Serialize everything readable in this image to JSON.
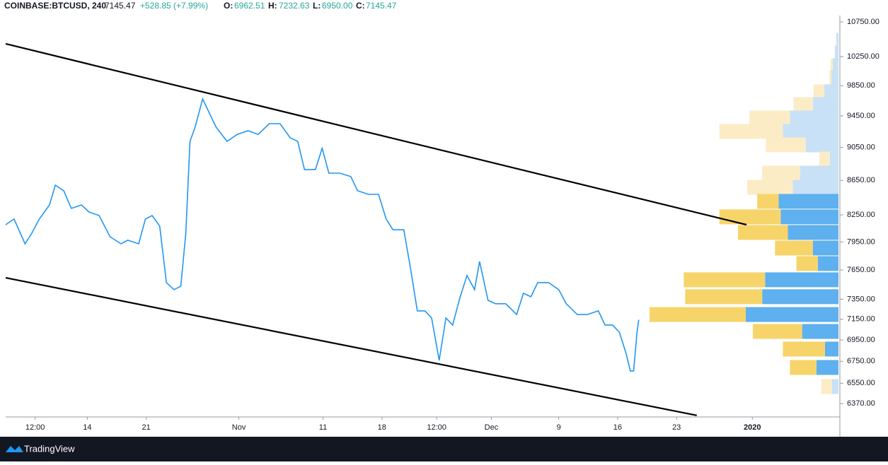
{
  "chart_data": {
    "type": "line",
    "header": {
      "symbol": "COINBASE:BTCUSD, 240",
      "last": "7145.47",
      "change": "+528.85 (+7.99%)",
      "o_label": "O:",
      "o": "6962.51",
      "h_label": "H:",
      "h": "7232.63",
      "l_label": "L:",
      "l": "6950.00",
      "c_label": "C:",
      "c": "7145.47"
    },
    "brand": "TradingView",
    "log_scale": true,
    "ylim": [
      6254,
      10844
    ],
    "yticks": [
      {
        "value": 10750,
        "label": "10750.00"
      },
      {
        "value": 10250,
        "label": "10250.00"
      },
      {
        "value": 9850,
        "label": "9850.00"
      },
      {
        "value": 9450,
        "label": "9450.00"
      },
      {
        "value": 9050,
        "label": "9050.00"
      },
      {
        "value": 8650,
        "label": "8650.00"
      },
      {
        "value": 8250,
        "label": "8250.00"
      },
      {
        "value": 7950,
        "label": "7950.00"
      },
      {
        "value": 7650,
        "label": "7650.00"
      },
      {
        "value": 7350,
        "label": "7350.00"
      },
      {
        "value": 7150,
        "label": "7150.00"
      },
      {
        "value": 6950,
        "label": "6950.00"
      },
      {
        "value": 6750,
        "label": "6750.00"
      },
      {
        "value": 6550,
        "label": "6550.00"
      },
      {
        "value": 6370,
        "label": "6370.00"
      }
    ],
    "xlim": [
      3.3,
      102.4
    ],
    "xticks": [
      {
        "value": 6.8,
        "label": "12:00"
      },
      {
        "value": 13,
        "label": "14"
      },
      {
        "value": 20,
        "label": "21"
      },
      {
        "value": 31,
        "label": "Nov"
      },
      {
        "value": 41,
        "label": "11"
      },
      {
        "value": 48,
        "label": "18"
      },
      {
        "value": 54.5,
        "label": "12:00"
      },
      {
        "value": 61,
        "label": "Dec"
      },
      {
        "value": 69,
        "label": "9"
      },
      {
        "value": 76,
        "label": "16"
      },
      {
        "value": 83,
        "label": "23"
      },
      {
        "value": 92,
        "label": "2020"
      }
    ],
    "x": [
      3.3,
      4.3,
      5.6,
      6.4,
      7.3,
      8.5,
      9.2,
      10.2,
      11.1,
      12.3,
      13.2,
      14.4,
      15.7,
      17.0,
      17.8,
      19.1,
      19.9,
      20.7,
      21.6,
      22.4,
      23.3,
      24.1,
      24.7,
      25.2,
      25.8,
      26.7,
      27.5,
      28.3,
      29.6,
      30.8,
      32.1,
      33.3,
      34.6,
      35.9,
      37.1,
      38.0,
      38.8,
      40.1,
      40.9,
      41.7,
      43.0,
      44.3,
      45.1,
      46.4,
      47.6,
      48.5,
      49.3,
      50.6,
      51.4,
      52.2,
      53.1,
      53.9,
      54.8,
      55.6,
      56.4,
      57.3,
      58.1,
      59.0,
      59.6,
      60.6,
      61.5,
      62.7,
      64.0,
      64.8,
      65.7,
      66.5,
      67.8,
      69.0,
      69.9,
      71.2,
      72.4,
      73.7,
      74.5,
      75.4,
      76.2,
      77.0,
      77.5,
      77.9,
      78.3,
      78.5
    ],
    "series": [
      {
        "color": "#2196f3",
        "values": [
          8140,
          8204,
          7930,
          8046,
          8204,
          8364,
          8594,
          8528,
          8324,
          8364,
          8283,
          8243,
          8007,
          7930,
          7969,
          7930,
          8204,
          8243,
          8125,
          7519,
          7447,
          7482,
          8046,
          9126,
          9305,
          9673,
          9487,
          9305,
          9126,
          9213,
          9260,
          9213,
          9350,
          9350,
          9170,
          9126,
          8780,
          8780,
          9040,
          8737,
          8737,
          8695,
          8528,
          8486,
          8486,
          8204,
          8084,
          8084,
          7665,
          7233,
          7233,
          7163,
          6759,
          7163,
          7094,
          7375,
          7592,
          7447,
          7740,
          7339,
          7304,
          7304,
          7197,
          7410,
          7375,
          7519,
          7519,
          7447,
          7304,
          7197,
          7197,
          7233,
          7094,
          7094,
          7025,
          6824,
          6661,
          6661,
          7025,
          7145
        ]
      }
    ],
    "trendlines": [
      {
        "color": "#000000",
        "x": [
          3.3,
          91.3
        ],
        "y": [
          10432,
          8140
        ]
      },
      {
        "color": "#000000",
        "x": [
          3.3,
          85.4
        ],
        "y": [
          7569,
          6267
        ]
      }
    ],
    "volume_profile": {
      "buy_color": "#5eb0ee",
      "sell_color": "#f7d46a",
      "buy_light": "#c8e1f6",
      "sell_light": "#fcecc6",
      "value_area": [
        6693,
        8405
      ],
      "rows": [
        {
          "price": 10483,
          "buy": 3,
          "sell": 0
        },
        {
          "price": 10302,
          "buy": 5,
          "sell": 0
        },
        {
          "price": 10123,
          "buy": 8,
          "sell": 3
        },
        {
          "price": 9958,
          "buy": 10,
          "sell": 3
        },
        {
          "price": 9767,
          "buy": 20,
          "sell": 15
        },
        {
          "price": 9598,
          "buy": 36,
          "sell": 27
        },
        {
          "price": 9423,
          "buy": 68,
          "sell": 57
        },
        {
          "price": 9251,
          "buy": 78,
          "sell": 89
        },
        {
          "price": 9082,
          "buy": 46,
          "sell": 56
        },
        {
          "price": 8907,
          "buy": 12,
          "sell": 15
        },
        {
          "price": 8737,
          "buy": 54,
          "sell": 53
        },
        {
          "price": 8569,
          "buy": 64,
          "sell": 64
        },
        {
          "price": 8405,
          "buy": 84,
          "sell": 30
        },
        {
          "price": 8228,
          "buy": 81,
          "sell": 86
        },
        {
          "price": 8054,
          "buy": 71,
          "sell": 70
        },
        {
          "price": 7884,
          "buy": 36,
          "sell": 53
        },
        {
          "price": 7718,
          "buy": 29,
          "sell": 30
        },
        {
          "price": 7548,
          "buy": 103,
          "sell": 114
        },
        {
          "price": 7375,
          "buy": 107,
          "sell": 108
        },
        {
          "price": 7197,
          "buy": 130,
          "sell": 135
        },
        {
          "price": 7032,
          "buy": 51,
          "sell": 69
        },
        {
          "price": 6864,
          "buy": 19,
          "sell": 59
        },
        {
          "price": 6693,
          "buy": 31,
          "sell": 37
        },
        {
          "price": 6520,
          "buy": 9,
          "sell": 15
        }
      ]
    }
  }
}
